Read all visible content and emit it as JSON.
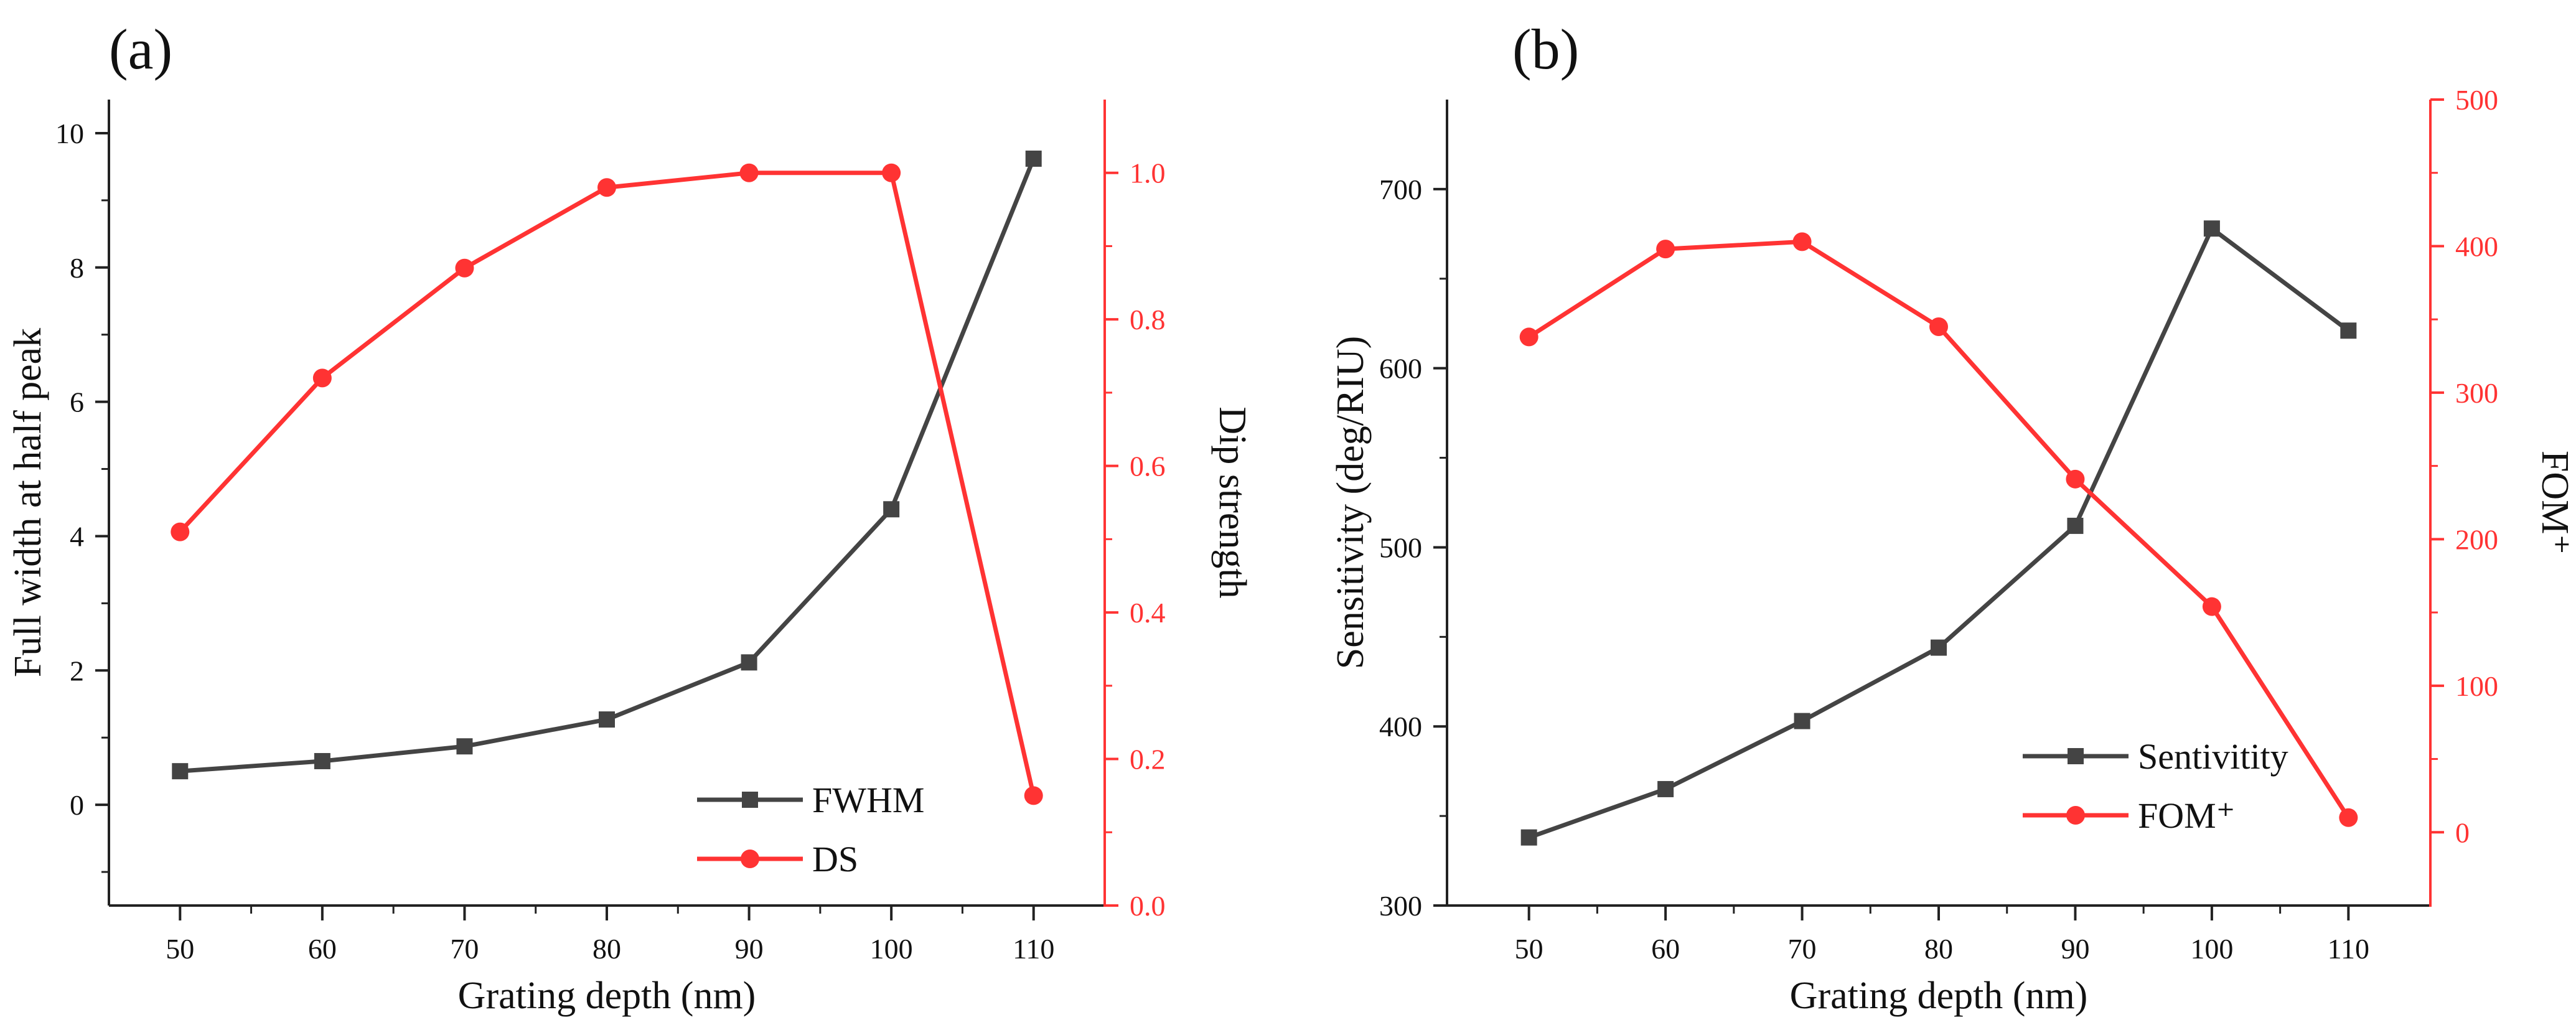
{
  "colors": {
    "left_series": "#444444",
    "right_series": "#ff3333",
    "axis": "#222222"
  },
  "chart_data": [
    {
      "panel_label": "(a)",
      "type": "line",
      "xlabel": "Grating depth (nm)",
      "ylabel_left": "Full width at half peak",
      "ylabel_right": "Dip strength",
      "xlim": [
        45,
        115
      ],
      "ylim_left": [
        -1.5,
        10.5
      ],
      "ylim_right": [
        0.0,
        1.1
      ],
      "x_ticks": [
        50,
        60,
        70,
        80,
        90,
        100,
        110
      ],
      "y_ticks_left": [
        0,
        2,
        4,
        6,
        8,
        10
      ],
      "y_ticks_right": [
        0.0,
        0.2,
        0.4,
        0.6,
        0.8,
        1.0
      ],
      "y_tick_decimals_right": 1,
      "grid": false,
      "legend_position": "bottom-right",
      "series": [
        {
          "name": "FWHM",
          "axis": "left",
          "marker": "square",
          "color": "#444444",
          "x": [
            50,
            60,
            70,
            80,
            90,
            100,
            110
          ],
          "values": [
            0.5,
            0.65,
            0.87,
            1.27,
            2.12,
            4.4,
            9.62
          ]
        },
        {
          "name": "DS",
          "axis": "right",
          "marker": "circle",
          "color": "#ff3333",
          "x": [
            50,
            60,
            70,
            80,
            90,
            100,
            110
          ],
          "values": [
            0.51,
            0.72,
            0.87,
            0.98,
            1.0,
            1.0,
            0.15
          ]
        }
      ]
    },
    {
      "panel_label": "(b)",
      "type": "line",
      "xlabel": "Grating depth (nm)",
      "ylabel_left": "Sensitivity (deg/RIU)",
      "ylabel_right": "FOM⁺",
      "xlim": [
        44,
        116
      ],
      "ylim_left": [
        300,
        750
      ],
      "ylim_right": [
        -50,
        500
      ],
      "x_ticks": [
        50,
        60,
        70,
        80,
        90,
        100,
        110
      ],
      "y_ticks_left": [
        300,
        400,
        500,
        600,
        700
      ],
      "y_ticks_right": [
        0,
        100,
        200,
        300,
        400,
        500
      ],
      "y_tick_decimals_right": 0,
      "grid": false,
      "legend_position": "bottom-right",
      "series": [
        {
          "name": "Sentivitity",
          "axis": "left",
          "marker": "square",
          "color": "#444444",
          "x": [
            50,
            60,
            70,
            80,
            90,
            100,
            110
          ],
          "values": [
            338,
            365,
            403,
            444,
            512,
            678,
            621
          ]
        },
        {
          "name": "FOM⁺",
          "axis": "right",
          "marker": "circle",
          "color": "#ff3333",
          "x": [
            50,
            60,
            70,
            80,
            90,
            100,
            110
          ],
          "values": [
            338,
            398,
            403,
            345,
            241,
            154,
            10
          ]
        }
      ]
    }
  ]
}
